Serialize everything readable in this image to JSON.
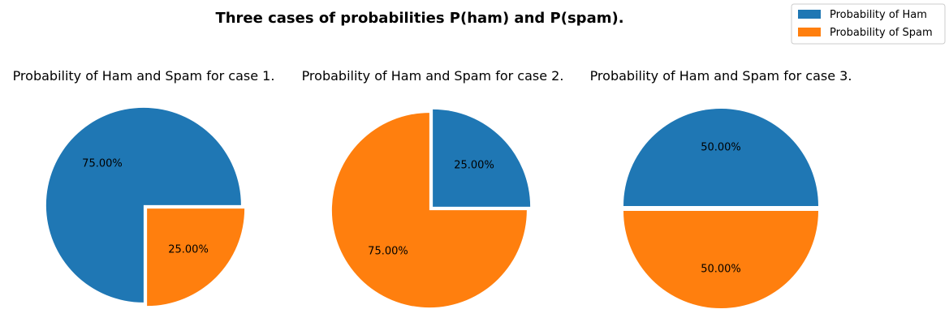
{
  "figure": {
    "suptitle": "Three cases of probabilities P(ham) and P(spam)."
  },
  "legend": {
    "placement": "top-right",
    "entries": [
      {
        "label": "Probability of Ham",
        "color": "#1f77b4"
      },
      {
        "label": "Probability of Spam",
        "color": "#ff7f0e"
      }
    ]
  },
  "chart_data": [
    {
      "type": "pie",
      "title": "Probability of Ham and Spam for case 1.",
      "categories": [
        "Probability of Ham",
        "Probability of Spam"
      ],
      "values": [
        75,
        25
      ],
      "labels": [
        "75.00%",
        "25.00%"
      ],
      "colors": [
        "#1f77b4",
        "#ff7f0e"
      ],
      "exploded": true
    },
    {
      "type": "pie",
      "title": "Probability of Ham and Spam for case 2.",
      "categories": [
        "Probability of Ham",
        "Probability of Spam"
      ],
      "values": [
        25,
        75
      ],
      "labels": [
        "25.00%",
        "75.00%"
      ],
      "colors": [
        "#1f77b4",
        "#ff7f0e"
      ],
      "exploded": true
    },
    {
      "type": "pie",
      "title": "Probability of Ham and Spam for case 3.",
      "categories": [
        "Probability of Ham",
        "Probability of Spam"
      ],
      "values": [
        50,
        50
      ],
      "labels": [
        "50.00%",
        "50.00%"
      ],
      "colors": [
        "#1f77b4",
        "#ff7f0e"
      ],
      "exploded": true
    }
  ]
}
